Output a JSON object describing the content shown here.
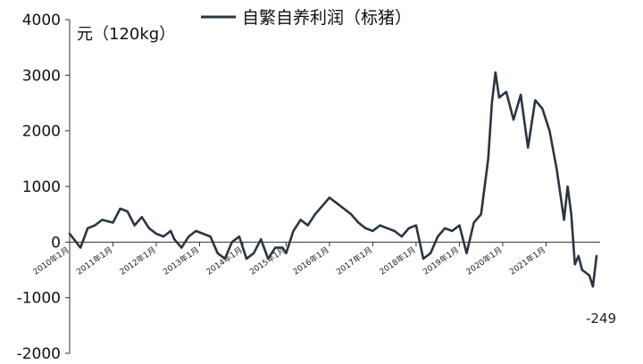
{
  "chart_data": {
    "type": "line",
    "title": "",
    "ylabel": "元（120kg）",
    "xlabel": "",
    "ylim": [
      -2000,
      4000
    ],
    "yticks": [
      4000,
      3000,
      2000,
      1000,
      0,
      -1000,
      -2000
    ],
    "xlim": [
      "2010-01",
      "2022-04"
    ],
    "xticks": [
      {
        "date": "2010-01",
        "label": "2010年1月"
      },
      {
        "date": "2011-01",
        "label": "2011年1月"
      },
      {
        "date": "2012-01",
        "label": "2012年1月"
      },
      {
        "date": "2013-01",
        "label": "2013年1月"
      },
      {
        "date": "2014-01",
        "label": "2014年1月"
      },
      {
        "date": "2015-01",
        "label": "2015年1月"
      },
      {
        "date": "2016-01",
        "label": "2016年1月"
      },
      {
        "date": "2017-01",
        "label": "2017年1月"
      },
      {
        "date": "2018-01",
        "label": "2018年1月"
      },
      {
        "date": "2019-01",
        "label": "2019年1月"
      },
      {
        "date": "2020-01",
        "label": "2020年1月"
      },
      {
        "date": "2021-01",
        "label": "2021年1月"
      }
    ],
    "grid": false,
    "legend_position": "top",
    "series": [
      {
        "name": "自繁自养利润（标猪）",
        "color": "#2b3442",
        "x": [
          "2010-01",
          "2010-04",
          "2010-06",
          "2010-08",
          "2010-10",
          "2011-01",
          "2011-03",
          "2011-05",
          "2011-07",
          "2011-09",
          "2011-11",
          "2012-01",
          "2012-03",
          "2012-05",
          "2012-06",
          "2012-08",
          "2012-10",
          "2012-12",
          "2013-02",
          "2013-04",
          "2013-06",
          "2013-08",
          "2013-10",
          "2013-12",
          "2014-02",
          "2014-04",
          "2014-06",
          "2014-08",
          "2014-10",
          "2014-12",
          "2015-01",
          "2015-03",
          "2015-05",
          "2015-07",
          "2015-09",
          "2015-11",
          "2016-01",
          "2016-03",
          "2016-05",
          "2016-07",
          "2016-09",
          "2016-11",
          "2017-01",
          "2017-03",
          "2017-05",
          "2017-07",
          "2017-09",
          "2017-11",
          "2018-01",
          "2018-03",
          "2018-05",
          "2018-07",
          "2018-09",
          "2018-11",
          "2019-01",
          "2019-03",
          "2019-05",
          "2019-07",
          "2019-09",
          "2019-10",
          "2019-11",
          "2019-12",
          "2020-02",
          "2020-04",
          "2020-06",
          "2020-08",
          "2020-10",
          "2020-12",
          "2021-02",
          "2021-04",
          "2021-06",
          "2021-07",
          "2021-08",
          "2021-09",
          "2021-10",
          "2021-11",
          "2022-01",
          "2022-02",
          "2022-03"
        ],
        "values": [
          150,
          -100,
          250,
          300,
          400,
          350,
          600,
          550,
          300,
          450,
          250,
          150,
          100,
          200,
          50,
          -100,
          100,
          200,
          150,
          100,
          -200,
          -300,
          0,
          100,
          -300,
          -200,
          50,
          -300,
          -100,
          -100,
          -200,
          200,
          400,
          300,
          500,
          650,
          800,
          700,
          600,
          500,
          350,
          250,
          200,
          300,
          250,
          200,
          100,
          250,
          300,
          -300,
          -200,
          100,
          250,
          200,
          300,
          -200,
          350,
          500,
          1500,
          2500,
          3050,
          2600,
          2700,
          2200,
          2650,
          1700,
          2550,
          2400,
          2000,
          1300,
          400,
          1000,
          500,
          -400,
          -250,
          -500,
          -600,
          -800,
          -249
        ]
      }
    ],
    "annotations": [
      "-249"
    ]
  }
}
